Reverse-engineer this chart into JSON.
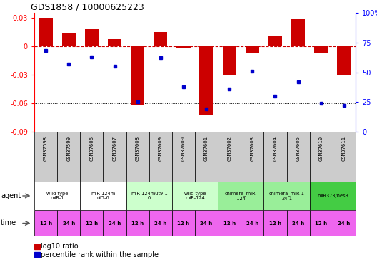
{
  "title": "GDS1858 / 10000625223",
  "samples": [
    "GSM37598",
    "GSM37599",
    "GSM37606",
    "GSM37607",
    "GSM37608",
    "GSM37609",
    "GSM37600",
    "GSM37601",
    "GSM37602",
    "GSM37603",
    "GSM37604",
    "GSM37605",
    "GSM37610",
    "GSM37611"
  ],
  "log10_ratio": [
    0.03,
    0.013,
    0.018,
    0.007,
    -0.062,
    0.015,
    -0.002,
    -0.072,
    -0.03,
    -0.008,
    0.011,
    0.028,
    -0.007,
    -0.03
  ],
  "percentile_rank": [
    68,
    57,
    63,
    55,
    25,
    62,
    38,
    19,
    36,
    51,
    30,
    42,
    24,
    22
  ],
  "ylim_left": [
    -0.09,
    0.035
  ],
  "ylim_right": [
    0,
    100
  ],
  "yticks_left": [
    -0.09,
    -0.06,
    -0.03,
    0.0,
    0.03
  ],
  "yticks_right": [
    0,
    25,
    50,
    75,
    100
  ],
  "ytick_labels_left": [
    "-0.09",
    "-0.06",
    "-0.03",
    "0",
    "0.03"
  ],
  "ytick_labels_right": [
    "0",
    "25",
    "50",
    "75",
    "100%"
  ],
  "hline_y": 0.0,
  "dotted_lines": [
    -0.03,
    -0.06
  ],
  "bar_color": "#cc0000",
  "dot_color": "#0000cc",
  "hline_color": "#cc0000",
  "agent_groups": [
    {
      "label": "wild type\nmiR-1",
      "start": 0,
      "end": 2,
      "color": "#ffffff"
    },
    {
      "label": "miR-124m\nut5-6",
      "start": 2,
      "end": 4,
      "color": "#ffffff"
    },
    {
      "label": "miR-124mut9-1\n0",
      "start": 4,
      "end": 6,
      "color": "#ccffcc"
    },
    {
      "label": "wild type\nmiR-124",
      "start": 6,
      "end": 8,
      "color": "#ccffcc"
    },
    {
      "label": "chimera_miR-\n-124",
      "start": 8,
      "end": 10,
      "color": "#99ee99"
    },
    {
      "label": "chimera_miR-1\n24-1",
      "start": 10,
      "end": 12,
      "color": "#99ee99"
    },
    {
      "label": "miR373/hes3",
      "start": 12,
      "end": 14,
      "color": "#44cc44"
    }
  ],
  "time_labels": [
    "12 h",
    "24 h",
    "12 h",
    "24 h",
    "12 h",
    "24 h",
    "12 h",
    "24 h",
    "12 h",
    "24 h",
    "12 h",
    "24 h",
    "12 h",
    "24 h"
  ],
  "time_color": "#ee66ee",
  "gsm_bg": "#cccccc",
  "legend_square_size": 8
}
